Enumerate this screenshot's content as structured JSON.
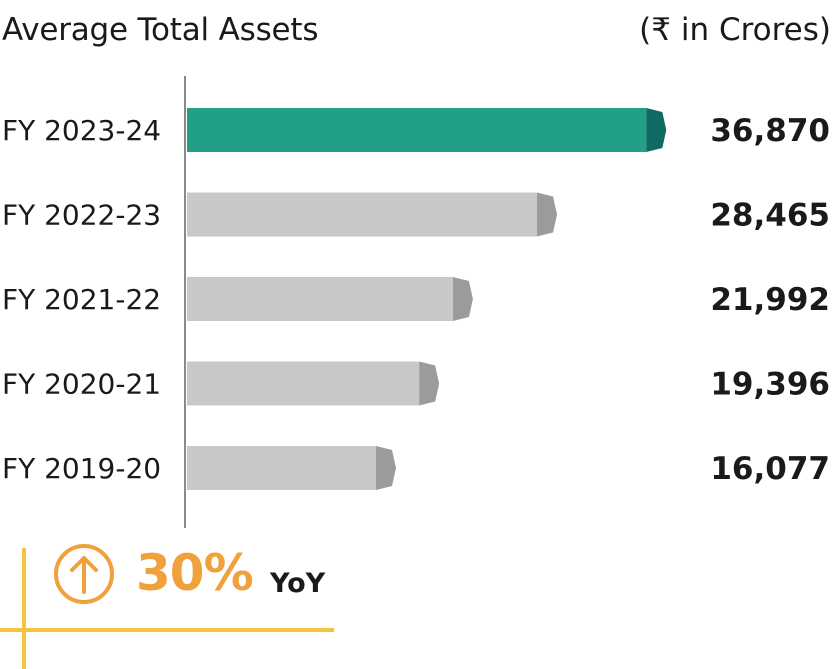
{
  "header": {
    "title": "Average Total Assets",
    "unit": "(₹ in Crores)"
  },
  "yoy": {
    "percent": "30%",
    "label": "YoY",
    "icon": "arrow-up-circle-icon",
    "color": "#f0a13c"
  },
  "chart_data": {
    "type": "bar",
    "orientation": "horizontal",
    "title": "Average Total Assets",
    "unit": "(₹ in Crores)",
    "categories": [
      "FY 2023-24",
      "FY 2022-23",
      "FY 2021-22",
      "FY 2020-21",
      "FY 2019-20"
    ],
    "values": [
      36870,
      28465,
      21992,
      19396,
      16077
    ],
    "value_labels": [
      "36,870",
      "28,465",
      "21,992",
      "19,396",
      "16,077"
    ],
    "colors": {
      "highlight": "#22a085",
      "highlight_cap": "#0f6b62",
      "default": "#c7c8c9",
      "default_cap": "#9a9b9c"
    },
    "grid": false,
    "legend": "none"
  }
}
